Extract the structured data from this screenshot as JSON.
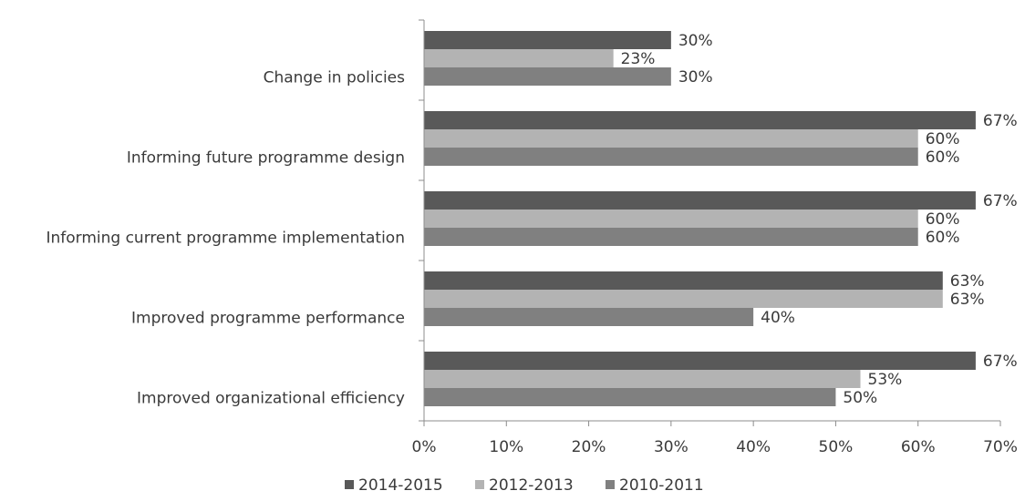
{
  "chart_data": {
    "type": "bar",
    "orientation": "horizontal",
    "categories": [
      "Change in policies",
      "Informing future programme design",
      "Informing current programme implementation",
      "Improved programme performance",
      "Improved organizational efficiency"
    ],
    "series": [
      {
        "name": "2014-2015",
        "color": "#595959",
        "values": [
          30,
          67,
          67,
          63,
          67
        ],
        "labels": [
          "30%",
          "67%",
          "67%",
          "63%",
          "67%"
        ]
      },
      {
        "name": "2012-2013",
        "color": "#b3b3b3",
        "values": [
          23,
          60,
          60,
          63,
          53
        ],
        "labels": [
          "23%",
          "60%",
          "60%",
          "63%",
          "53%"
        ]
      },
      {
        "name": "2010-2011",
        "color": "#808080",
        "values": [
          30,
          60,
          60,
          40,
          50
        ],
        "labels": [
          "30%",
          "60%",
          "60%",
          "40%",
          "50%"
        ]
      }
    ],
    "xlim": [
      0,
      70
    ],
    "xticks": [
      0,
      10,
      20,
      30,
      40,
      50,
      60,
      70
    ],
    "xtick_labels": [
      "0%",
      "10%",
      "20%",
      "30%",
      "40%",
      "50%",
      "60%",
      "70%"
    ],
    "grid": false,
    "legend_position": "bottom",
    "title": "",
    "xlabel": "",
    "ylabel": ""
  }
}
